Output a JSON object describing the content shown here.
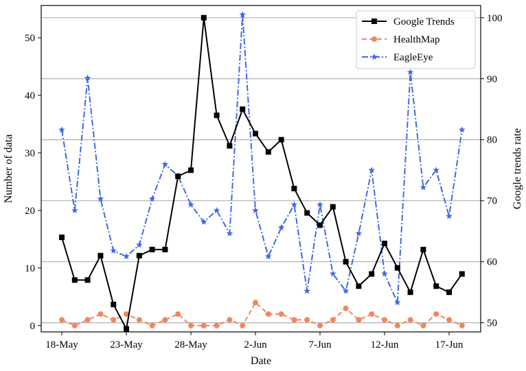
{
  "chart_data": {
    "type": "line",
    "xlabel": "Date",
    "ylabel_left": "Number of data",
    "ylabel_right": "Google trends rate",
    "x_ticks": [
      {
        "label": "18-May",
        "day": 0
      },
      {
        "label": "23-May",
        "day": 5
      },
      {
        "label": "28-May",
        "day": 10
      },
      {
        "label": "2-Jun",
        "day": 15
      },
      {
        "label": "7-Jun",
        "day": 20
      },
      {
        "label": "12-Jun",
        "day": 25
      },
      {
        "label": "17-Jun",
        "day": 30
      }
    ],
    "x_values": [
      "18-May",
      "19-May",
      "20-May",
      "21-May",
      "22-May",
      "23-May",
      "24-May",
      "25-May",
      "26-May",
      "27-May",
      "28-May",
      "29-May",
      "30-May",
      "31-May",
      "1-Jun",
      "2-Jun",
      "3-Jun",
      "4-Jun",
      "5-Jun",
      "6-Jun",
      "7-Jun",
      "8-Jun",
      "9-Jun",
      "10-Jun",
      "11-Jun",
      "12-Jun",
      "13-Jun",
      "14-Jun",
      "15-Jun",
      "16-Jun",
      "17-Jun",
      "18-Jun"
    ],
    "ylim_left": [
      -1.1,
      55.6
    ],
    "yticks_left": [
      0,
      10,
      20,
      30,
      40,
      50
    ],
    "ylim_right": [
      48.5,
      102.0
    ],
    "yticks_right": [
      50,
      60,
      70,
      80,
      90,
      100
    ],
    "grid": "horizontal lines at right-axis ticks",
    "legend_position": "top-right",
    "series": [
      {
        "name": "Google Trends",
        "axis": "right",
        "color": "#000000",
        "linestyle": "solid",
        "marker": "square",
        "values": [
          64,
          57,
          57,
          61,
          53,
          49,
          61,
          62,
          62,
          74,
          75,
          100,
          84,
          79,
          85,
          81,
          78,
          80,
          72,
          68,
          66,
          69,
          60,
          56,
          58,
          63,
          59,
          55,
          62,
          56,
          55,
          58
        ]
      },
      {
        "name": "HealthMap",
        "axis": "left",
        "color": "#f4845f",
        "linestyle": "dashed",
        "marker": "circle",
        "values": [
          1,
          0,
          1,
          2,
          1,
          2,
          1,
          0,
          1,
          2,
          0,
          0,
          0,
          1,
          0,
          4,
          2,
          2,
          1,
          1,
          0,
          1,
          3,
          1,
          2,
          1,
          0,
          1,
          0,
          2,
          1,
          0
        ]
      },
      {
        "name": "EagleEye",
        "axis": "left",
        "color": "#4169e1",
        "linestyle": "dashdot",
        "marker": "star",
        "values": [
          34,
          20,
          43,
          22,
          13,
          12,
          14,
          22,
          28,
          26,
          21,
          18,
          20,
          16,
          54,
          20,
          12,
          17,
          21,
          6,
          21,
          9,
          6,
          16,
          27,
          9,
          4,
          44,
          24,
          27,
          19,
          34
        ]
      }
    ]
  }
}
